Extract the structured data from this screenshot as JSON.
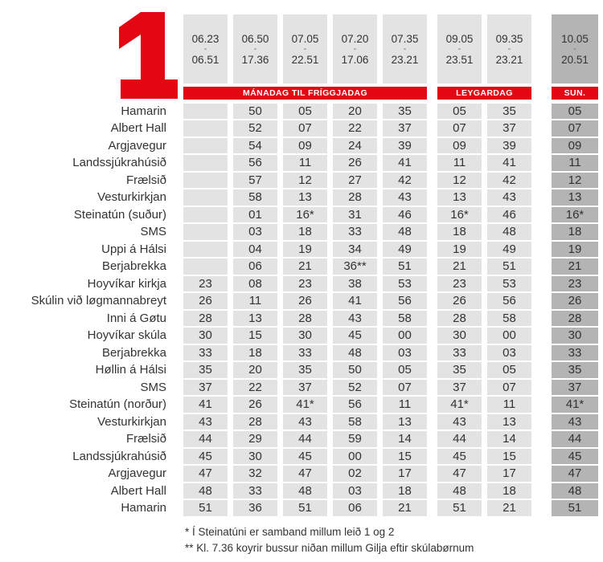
{
  "route_number": "1",
  "time_separator": "-",
  "columns": [
    {
      "start": "06.23",
      "end": "06.51",
      "group": "weekday"
    },
    {
      "start": "06.50",
      "end": "17.36",
      "group": "weekday"
    },
    {
      "start": "07.05",
      "end": "22.51",
      "group": "weekday"
    },
    {
      "start": "07.20",
      "end": "17.06",
      "group": "weekday"
    },
    {
      "start": "07.35",
      "end": "23.21",
      "group": "weekday"
    },
    {
      "start": "09.05",
      "end": "23.51",
      "group": "saturday"
    },
    {
      "start": "09.35",
      "end": "23.21",
      "group": "saturday"
    },
    {
      "start": "10.05",
      "end": "20.51",
      "group": "sunday"
    }
  ],
  "day_bands": [
    {
      "label": "MÁNADAG TIL FRÍGGJADAG",
      "columns": "1-5"
    },
    {
      "label": "LEYGARDAG",
      "columns": "6-7"
    },
    {
      "label": "SUN.",
      "columns": "8"
    }
  ],
  "rows": [
    {
      "stop": "Hamarin",
      "times": [
        "",
        "50",
        "05",
        "20",
        "35",
        "05",
        "35",
        "05"
      ]
    },
    {
      "stop": "Albert Hall",
      "times": [
        "",
        "52",
        "07",
        "22",
        "37",
        "07",
        "37",
        "07"
      ]
    },
    {
      "stop": "Argjavegur",
      "times": [
        "",
        "54",
        "09",
        "24",
        "39",
        "09",
        "39",
        "09"
      ]
    },
    {
      "stop": "Landssjúkrahúsið",
      "times": [
        "",
        "56",
        "11",
        "26",
        "41",
        "11",
        "41",
        "11"
      ]
    },
    {
      "stop": "Frælsið",
      "times": [
        "",
        "57",
        "12",
        "27",
        "42",
        "12",
        "42",
        "12"
      ]
    },
    {
      "stop": "Vesturkirkjan",
      "times": [
        "",
        "58",
        "13",
        "28",
        "43",
        "13",
        "43",
        "13"
      ]
    },
    {
      "stop": "Steinatún (suður)",
      "times": [
        "",
        "01",
        "16*",
        "31",
        "46",
        "16*",
        "46",
        "16*"
      ]
    },
    {
      "stop": "SMS",
      "times": [
        "",
        "03",
        "18",
        "33",
        "48",
        "18",
        "48",
        "18"
      ]
    },
    {
      "stop": "Uppi á Hálsi",
      "times": [
        "",
        "04",
        "19",
        "34",
        "49",
        "19",
        "49",
        "19"
      ]
    },
    {
      "stop": "Berjabrekka",
      "times": [
        "",
        "06",
        "21",
        "36**",
        "51",
        "21",
        "51",
        "21"
      ]
    },
    {
      "stop": "Hoyvíkar kirkja",
      "times": [
        "23",
        "08",
        "23",
        "38",
        "53",
        "23",
        "53",
        "23"
      ]
    },
    {
      "stop": "Skúlin við løgmannabreyt",
      "times": [
        "26",
        "11",
        "26",
        "41",
        "56",
        "26",
        "56",
        "26"
      ]
    },
    {
      "stop": "Inni á Gøtu",
      "times": [
        "28",
        "13",
        "28",
        "43",
        "58",
        "28",
        "58",
        "28"
      ]
    },
    {
      "stop": "Hoyvíkar skúla",
      "times": [
        "30",
        "15",
        "30",
        "45",
        "00",
        "30",
        "00",
        "30"
      ]
    },
    {
      "stop": "Berjabrekka",
      "times": [
        "33",
        "18",
        "33",
        "48",
        "03",
        "33",
        "03",
        "33"
      ]
    },
    {
      "stop": "Høllin á Hálsi",
      "times": [
        "35",
        "20",
        "35",
        "50",
        "05",
        "35",
        "05",
        "35"
      ]
    },
    {
      "stop": "SMS",
      "times": [
        "37",
        "22",
        "37",
        "52",
        "07",
        "37",
        "07",
        "37"
      ]
    },
    {
      "stop": "Steinatún (norður)",
      "times": [
        "41",
        "26",
        "41*",
        "56",
        "11",
        "41*",
        "11",
        "41*"
      ]
    },
    {
      "stop": "Vesturkirkjan",
      "times": [
        "43",
        "28",
        "43",
        "58",
        "13",
        "43",
        "13",
        "43"
      ]
    },
    {
      "stop": "Frælsið",
      "times": [
        "44",
        "29",
        "44",
        "59",
        "14",
        "44",
        "14",
        "44"
      ]
    },
    {
      "stop": "Landssjúkrahúsið",
      "times": [
        "45",
        "30",
        "45",
        "00",
        "15",
        "45",
        "15",
        "45"
      ]
    },
    {
      "stop": "Argjavegur",
      "times": [
        "47",
        "32",
        "47",
        "02",
        "17",
        "47",
        "17",
        "47"
      ]
    },
    {
      "stop": "Albert Hall",
      "times": [
        "48",
        "33",
        "48",
        "03",
        "18",
        "48",
        "18",
        "48"
      ]
    },
    {
      "stop": "Hamarin",
      "times": [
        "51",
        "36",
        "51",
        "06",
        "21",
        "51",
        "21",
        "51"
      ]
    }
  ],
  "footnotes": [
    "* Í Steinatúni er samband millum leið 1 og 2",
    "** Kl. 7.36 koyrir bussur niðan millum Gilja eftir skúlabørnum"
  ],
  "colors": {
    "red": "#e30613",
    "cell_gray": "#e3e3e3",
    "sunday_gray": "#b4b4b4",
    "text": "#333333"
  }
}
